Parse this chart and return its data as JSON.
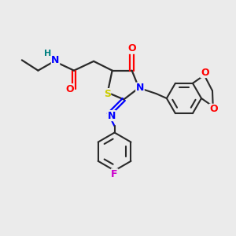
{
  "bg_color": "#ebebeb",
  "bond_color": "#2a2a2a",
  "atom_colors": {
    "O": "#ff0000",
    "N": "#0000ff",
    "S": "#cccc00",
    "F": "#cc00cc",
    "H": "#008080"
  }
}
